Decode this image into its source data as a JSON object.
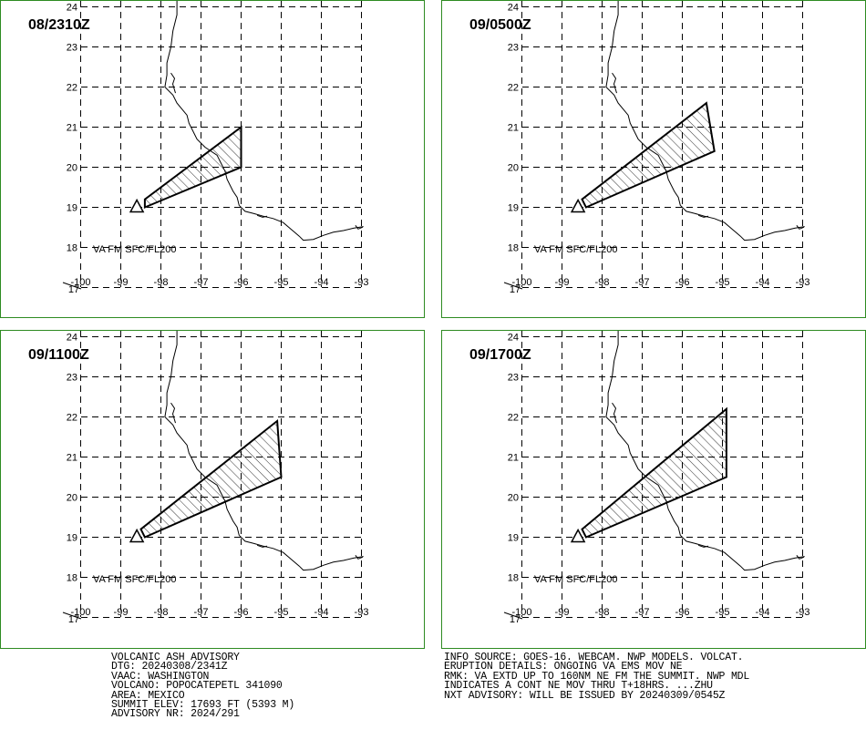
{
  "colors": {
    "frame": "#2e8b22",
    "ink": "#000000"
  },
  "panels": [
    {
      "time": "08/2310Z",
      "va_label": "VA FM SFC/FL200",
      "polygon": [
        [
          -98.4,
          19.0
        ],
        [
          -96.0,
          20.0
        ],
        [
          -96.0,
          21.0
        ],
        [
          -98.4,
          19.2
        ]
      ]
    },
    {
      "time": "09/0500Z",
      "va_label": "VA FM SFC/FL200",
      "polygon": [
        [
          -98.4,
          19.0
        ],
        [
          -95.2,
          20.4
        ],
        [
          -95.4,
          21.6
        ],
        [
          -98.5,
          19.2
        ]
      ]
    },
    {
      "time": "09/1100Z",
      "va_label": "VA FM SFC/FL200",
      "polygon": [
        [
          -98.4,
          19.0
        ],
        [
          -95.0,
          20.5
        ],
        [
          -95.1,
          21.9
        ],
        [
          -98.5,
          19.2
        ]
      ]
    },
    {
      "time": "09/1700Z",
      "va_label": "VA FM SFC/FL200",
      "polygon": [
        [
          -98.4,
          19.0
        ],
        [
          -94.9,
          20.5
        ],
        [
          -94.9,
          22.2
        ],
        [
          -98.5,
          19.2
        ]
      ]
    }
  ],
  "map": {
    "lon_ticks": [
      "-100",
      "-99",
      "-98",
      "-97",
      "-96",
      "-95",
      "-94",
      "-93"
    ],
    "lat_ticks": [
      "24",
      "23",
      "22",
      "21",
      "20",
      "19",
      "18",
      "17"
    ],
    "volcano": [
      -98.6,
      19.0
    ]
  },
  "advisory_left": [
    "VOLCANIC ASH ADVISORY",
    "DTG: 20240308/2341Z",
    "VAAC: WASHINGTON",
    "VOLCANO: POPOCATEPETL 341090",
    "AREA: MEXICO",
    "SUMMIT ELEV: 17693 FT (5393 M)",
    "ADVISORY NR: 2024/291"
  ],
  "advisory_right": [
    "INFO SOURCE: GOES-16. WEBCAM. NWP MODELS. VOLCAT.",
    "ERUPTION DETAILS: ONGOING VA EMS MOV NE",
    "RMK: VA EXTD UP TO 160NM NE FM THE SUMMIT. NWP MDL",
    "INDICATES A CONT NE MOV THRU T+18HRS. ...ZHU",
    "NXT ADVISORY: WILL BE ISSUED BY 20240309/0545Z"
  ]
}
